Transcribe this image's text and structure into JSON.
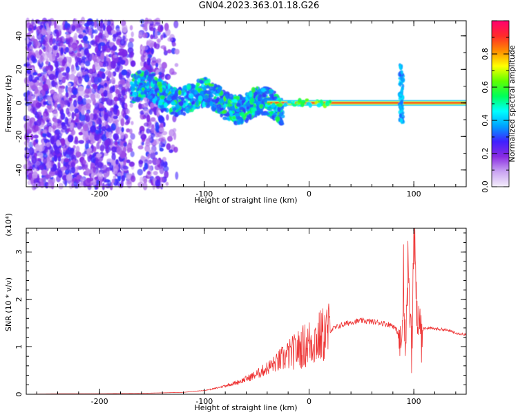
{
  "title": "GN04.2023.363.01.18.G26",
  "chart_data": [
    {
      "type": "heatmap",
      "xlabel": "Height of straight line (km)",
      "ylabel": "Frequency (Hz)",
      "xlim": [
        -270,
        150
      ],
      "ylim": [
        -50,
        49
      ],
      "xticks": [
        -200,
        -100,
        0,
        100
      ],
      "yticks": [
        -40,
        -20,
        0,
        20,
        40
      ],
      "colorbar": {
        "label": "Normalized spectral amplitude",
        "range": [
          0,
          1
        ],
        "ticks": [
          "0.0",
          "0.2",
          "0.4",
          "0.6",
          "0.8"
        ],
        "colors": [
          "#f4eefb",
          "#c9a4f2",
          "#8a2be2",
          "#3f20ff",
          "#00a0ff",
          "#00ffff",
          "#00ff5a",
          "#60ff00",
          "#ffff00",
          "#ff8c00",
          "#ff2a2a",
          "#ff0070"
        ]
      },
      "features": [
        {
          "name": "broadband-noise",
          "x": [
            -270,
            -125
          ],
          "y": [
            -50,
            49
          ],
          "amplitude": 0.1
        },
        {
          "name": "wandering-signal",
          "x": [
            -170,
            -25
          ],
          "y_center_start": 8,
          "y_center_end": -4,
          "amplitude": 0.35
        },
        {
          "name": "carrier-line",
          "x": [
            -40,
            150
          ],
          "y": 0,
          "amplitude": 0.9
        },
        {
          "name": "spike",
          "x": 88,
          "y": [
            -12,
            23
          ],
          "amplitude": 0.3
        }
      ]
    },
    {
      "type": "line",
      "xlabel": "Height of straight line (km)",
      "ylabel": "SNR (10 * v/v)",
      "yscale_label": "(x10⁴)",
      "xlim": [
        -270,
        150
      ],
      "ylim": [
        0,
        3.5
      ],
      "xticks": [
        -200,
        -100,
        0,
        100
      ],
      "yticks": [
        0,
        1,
        2,
        3
      ],
      "color": "#ee3333",
      "series": [
        {
          "x": [
            -270,
            -240,
            -200,
            -160,
            -140,
            -120,
            -100,
            -90,
            -80,
            -70,
            -60,
            -50,
            -40,
            -30,
            -20,
            -10,
            0,
            10,
            20,
            30,
            40,
            50,
            60,
            70,
            80,
            85,
            88,
            90,
            92,
            95,
            98,
            100,
            103,
            106,
            110,
            120,
            130,
            140,
            150
          ],
          "values": [
            0.0,
            0.01,
            0.01,
            0.02,
            0.03,
            0.04,
            0.08,
            0.12,
            0.18,
            0.24,
            0.32,
            0.42,
            0.55,
            0.68,
            0.82,
            0.95,
            1.08,
            1.2,
            1.35,
            1.45,
            1.52,
            1.55,
            1.53,
            1.5,
            1.45,
            1.3,
            0.9,
            2.3,
            1.0,
            2.6,
            0.8,
            3.5,
            1.6,
            1.3,
            1.4,
            1.38,
            1.36,
            1.3,
            1.25
          ]
        }
      ]
    }
  ]
}
